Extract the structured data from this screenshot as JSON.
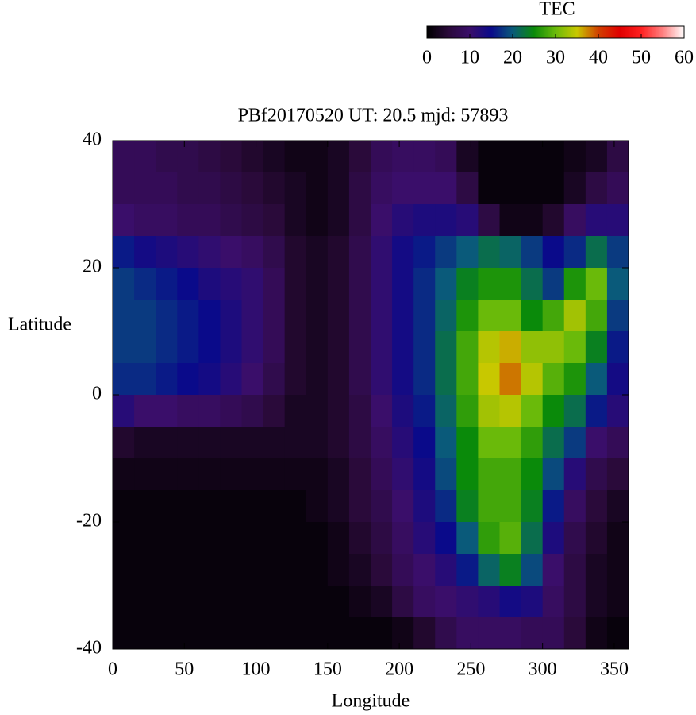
{
  "chart_data": {
    "type": "heatmap",
    "title": "PBf20170520  UT: 20.5  mjd: 57893",
    "x_label": "Longitude",
    "y_label": "Latitude",
    "colorbar_title": "TEC",
    "x": [
      7.5,
      22.5,
      37.5,
      52.5,
      67.5,
      82.5,
      97.5,
      112.5,
      127.5,
      142.5,
      157.5,
      172.5,
      187.5,
      202.5,
      217.5,
      232.5,
      247.5,
      262.5,
      277.5,
      292.5,
      307.5,
      322.5,
      337.5,
      352.5
    ],
    "y": [
      37.5,
      32.5,
      27.5,
      22.5,
      17.5,
      12.5,
      7.5,
      2.5,
      -2.5,
      -7.5,
      -12.5,
      -17.5,
      -22.5,
      -27.5,
      -32.5,
      -37.5
    ],
    "z": [
      [
        8,
        8,
        7,
        7,
        6,
        5,
        4,
        3,
        2,
        2,
        3,
        5,
        8,
        9,
        9,
        8,
        3,
        1,
        1,
        1,
        1,
        2,
        3,
        6
      ],
      [
        8,
        8,
        8,
        7,
        7,
        6,
        5,
        4,
        3,
        2,
        3,
        6,
        9,
        10,
        10,
        10,
        6,
        1,
        1,
        1,
        1,
        3,
        6,
        8
      ],
      [
        10,
        9,
        9,
        8,
        8,
        7,
        6,
        5,
        3,
        2,
        3,
        6,
        10,
        12,
        13,
        13,
        12,
        6,
        2,
        2,
        4,
        9,
        12,
        12
      ],
      [
        16,
        14,
        13,
        12,
        11,
        10,
        9,
        7,
        4,
        3,
        4,
        7,
        11,
        14,
        16,
        18,
        20,
        22,
        21,
        18,
        15,
        17,
        22,
        18
      ],
      [
        18,
        17,
        16,
        15,
        13,
        12,
        11,
        8,
        4,
        3,
        4,
        7,
        11,
        14,
        17,
        20,
        24,
        26,
        26,
        22,
        18,
        26,
        30,
        20
      ],
      [
        18,
        18,
        17,
        16,
        15,
        13,
        11,
        8,
        4,
        3,
        4,
        7,
        11,
        14,
        17,
        21,
        26,
        30,
        30,
        25,
        28,
        33,
        28,
        18
      ],
      [
        18,
        18,
        17,
        16,
        15,
        13,
        11,
        8,
        4,
        3,
        4,
        7,
        11,
        14,
        17,
        22,
        28,
        34,
        36,
        32,
        32,
        30,
        24,
        16
      ],
      [
        17,
        17,
        16,
        15,
        14,
        12,
        10,
        7,
        4,
        3,
        4,
        7,
        11,
        14,
        17,
        22,
        28,
        35,
        38,
        34,
        29,
        26,
        20,
        14
      ],
      [
        12,
        10,
        10,
        9,
        9,
        8,
        7,
        5,
        3,
        3,
        4,
        6,
        10,
        13,
        16,
        21,
        27,
        33,
        34,
        30,
        25,
        22,
        16,
        12
      ],
      [
        4,
        3,
        3,
        3,
        3,
        3,
        3,
        3,
        3,
        3,
        4,
        6,
        9,
        12,
        15,
        20,
        25,
        30,
        30,
        27,
        22,
        18,
        10,
        8
      ],
      [
        2,
        2,
        2,
        2,
        2,
        2,
        2,
        2,
        2,
        2,
        3,
        5,
        8,
        11,
        14,
        19,
        25,
        28,
        28,
        25,
        19,
        12,
        7,
        5
      ],
      [
        1,
        1,
        1,
        1,
        1,
        1,
        1,
        1,
        1,
        2,
        3,
        5,
        7,
        10,
        13,
        17,
        24,
        28,
        28,
        24,
        16,
        9,
        5,
        3
      ],
      [
        1,
        1,
        1,
        1,
        1,
        1,
        1,
        1,
        1,
        1,
        2,
        4,
        6,
        9,
        12,
        15,
        20,
        27,
        29,
        22,
        13,
        7,
        4,
        2
      ],
      [
        1,
        1,
        1,
        1,
        1,
        1,
        1,
        1,
        1,
        1,
        2,
        3,
        5,
        8,
        10,
        12,
        16,
        21,
        24,
        19,
        10,
        6,
        3,
        2
      ],
      [
        1,
        1,
        1,
        1,
        1,
        1,
        1,
        1,
        1,
        1,
        1,
        2,
        3,
        6,
        9,
        10,
        11,
        12,
        14,
        13,
        9,
        6,
        3,
        2
      ],
      [
        1,
        1,
        1,
        1,
        1,
        1,
        1,
        1,
        1,
        1,
        1,
        1,
        1,
        2,
        4,
        7,
        9,
        9,
        9,
        8,
        8,
        5,
        2,
        1
      ]
    ],
    "xlim": [
      0,
      360
    ],
    "ylim": [
      -40,
      40
    ],
    "xticks": [
      0,
      50,
      100,
      150,
      200,
      250,
      300,
      350
    ],
    "yticks": [
      -40,
      -20,
      0,
      20,
      40
    ],
    "zlim": [
      0,
      60
    ],
    "zticks": [
      0,
      10,
      20,
      30,
      40,
      50,
      60
    ],
    "colorscale": [
      "#000000",
      "#2a0a3a",
      "#3a0e6a",
      "#0a0a8a",
      "#0a5a7a",
      "#0a8a0a",
      "#6aba0a",
      "#c8c800",
      "#d04000",
      "#e00000",
      "#ff2020",
      "#ff8080",
      "#ffffff"
    ]
  }
}
